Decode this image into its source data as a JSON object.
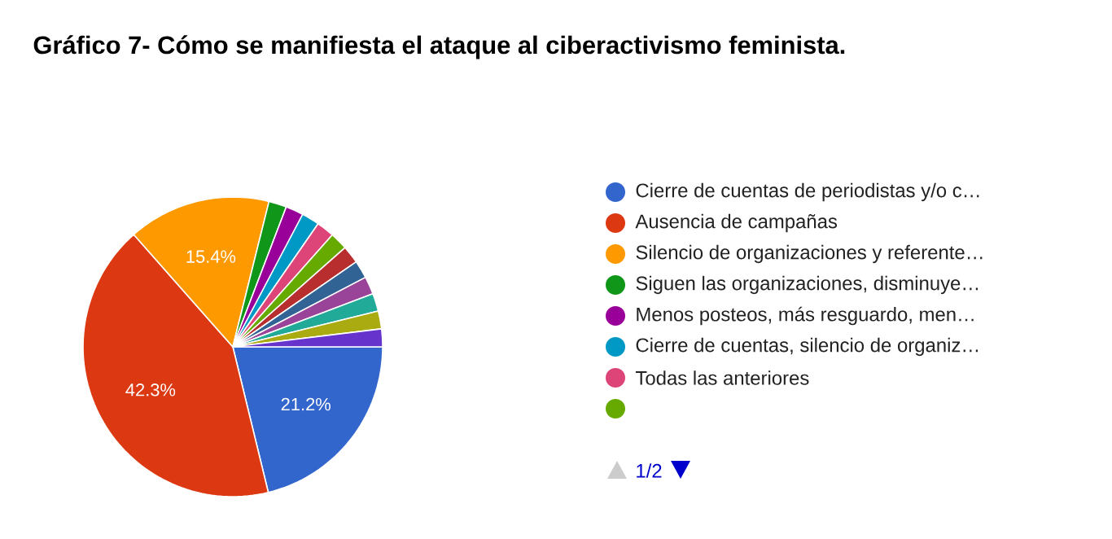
{
  "chart_data": {
    "type": "pie",
    "title": "Gráfico 7- Cómo se manifiesta el ataque al ciberactivismo feminista.",
    "categories": [
      "Cierre de cuentas de periodistas y/o c…",
      "Ausencia de campañas",
      "Silencio de organizaciones y referente…",
      "Siguen las organizaciones, disminuye…",
      "Menos posteos, más resguardo, men…",
      "Cierre de cuentas, silencio de organiz…",
      "Todas las anteriores",
      null,
      null,
      null,
      null,
      null,
      null,
      null
    ],
    "values": [
      21.2,
      42.3,
      15.4,
      1.92,
      1.92,
      1.92,
      1.92,
      1.92,
      1.92,
      1.92,
      1.92,
      1.92,
      1.92,
      1.92
    ],
    "colors": [
      "#3366cc",
      "#dc3912",
      "#ff9900",
      "#109618",
      "#990099",
      "#0099c6",
      "#dd4477",
      "#66aa00",
      "#b82e2e",
      "#316395",
      "#994499",
      "#22aa99",
      "#aaaa11",
      "#6633cc"
    ],
    "value_labels": [
      "21.2%",
      "42.3%",
      "15.4%",
      null,
      null,
      null,
      null,
      null,
      null,
      null,
      null,
      null,
      null,
      null
    ],
    "legend": "right",
    "annotations": [
      "1/2"
    ]
  }
}
